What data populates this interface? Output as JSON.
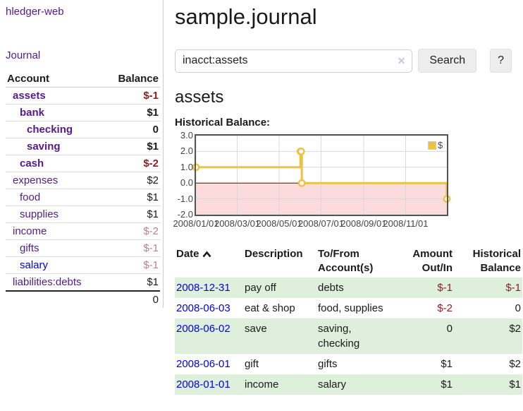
{
  "app": {
    "title": "hledger-web"
  },
  "colors": {
    "link_purple": "#551a8b",
    "link_blue": "#0000e6",
    "negative_strong": "#8f1d1d",
    "negative_soft": "#c28083",
    "row_shade_green": "#def0dc",
    "chart_gold": "#edc240",
    "chart_negative_region": "#fbdbdb",
    "chart_zero_line": "#800000",
    "chart_border": "#545454"
  },
  "sidebar": {
    "journal_link": "Journal",
    "accounts": {
      "account_header": "Account",
      "balance_header": "Balance",
      "rows": [
        {
          "account": "assets",
          "balance": "$-1",
          "indent": 1,
          "bold": true,
          "link_color": "purple",
          "balance_color": "neg-strong"
        },
        {
          "account": "bank",
          "balance": "$1",
          "indent": 2,
          "bold": true,
          "link_color": "purple",
          "balance_color": ""
        },
        {
          "account": "checking",
          "balance": "0",
          "indent": 3,
          "bold": true,
          "link_color": "purple",
          "balance_color": ""
        },
        {
          "account": "saving",
          "balance": "$1",
          "indent": 3,
          "bold": true,
          "link_color": "purple",
          "balance_color": ""
        },
        {
          "account": "cash",
          "balance": "$-2",
          "indent": 2,
          "bold": true,
          "link_color": "purple",
          "balance_color": "neg-strong"
        },
        {
          "account": "expenses",
          "balance": "$2",
          "indent": 1,
          "bold": false,
          "link_color": "purple",
          "balance_color": ""
        },
        {
          "account": "food",
          "balance": "$1",
          "indent": 2,
          "bold": false,
          "link_color": "purple",
          "balance_color": ""
        },
        {
          "account": "supplies",
          "balance": "$1",
          "indent": 2,
          "bold": false,
          "link_color": "purple",
          "balance_color": ""
        },
        {
          "account": "income",
          "balance": "$-2",
          "indent": 1,
          "bold": false,
          "link_color": "purple",
          "balance_color": "neg-soft"
        },
        {
          "account": "gifts",
          "balance": "$-1",
          "indent": 2,
          "bold": false,
          "link_color": "purple",
          "balance_color": "neg-soft"
        },
        {
          "account": "salary",
          "balance": "$-1",
          "indent": 2,
          "bold": false,
          "link_color": "blue",
          "balance_color": "neg-soft"
        },
        {
          "account": "liabilities:debts",
          "balance": "$1",
          "indent": 1,
          "bold": false,
          "link_color": "purple",
          "balance_color": ""
        }
      ],
      "total": "0"
    }
  },
  "main": {
    "title": "sample.journal",
    "search": {
      "value": "inacct:assets",
      "clear_icon": "✕",
      "button_label": "Search",
      "help_label": "?"
    },
    "account_heading": "assets"
  },
  "chart_data": {
    "type": "line",
    "step": true,
    "title": "Historical Balance:",
    "series": [
      {
        "name": "$",
        "color": "#edc240",
        "points": [
          [
            "2008-01-01",
            1
          ],
          [
            "2008-06-01",
            2
          ],
          [
            "2008-06-02",
            2
          ],
          [
            "2008-06-03",
            0
          ],
          [
            "2008-12-31",
            -1
          ]
        ]
      }
    ],
    "x_ticks": [
      "2008/01/01",
      "2008/03/01",
      "2008/05/01",
      "2008/07/01",
      "2008/09/01",
      "2008/11/01"
    ],
    "y_ticks": [
      3.0,
      2.0,
      1.0,
      0.0,
      -1.0,
      -2.0
    ],
    "xlim": [
      "2008-01-01",
      "2008-12-31"
    ],
    "ylim": [
      -2,
      3
    ],
    "grid": true,
    "legend": {
      "label": "$",
      "position": "top-right"
    },
    "negative_region_color": "#fbdbdb",
    "zero_line_color": "#800000"
  },
  "register": {
    "headers": {
      "date": "Date",
      "sort": {
        "column": "date",
        "direction": "asc"
      },
      "description": "Description",
      "accounts": [
        "To/From",
        "Account(s)"
      ],
      "amount": [
        "Amount",
        "Out/In"
      ],
      "balance": [
        "Historical",
        "Balance"
      ]
    },
    "rows": [
      {
        "date": "2008-12-31",
        "description": "pay off",
        "accounts": "debts",
        "amount": "$-1",
        "balance": "$-1",
        "amount_negative": true,
        "balance_negative": true,
        "shaded": true
      },
      {
        "date": "2008-06-03",
        "description": "eat & shop",
        "accounts": "food, supplies",
        "amount": "$-2",
        "balance": "0",
        "amount_negative": true,
        "balance_negative": false,
        "shaded": false
      },
      {
        "date": "2008-06-02",
        "description": "save",
        "accounts": "saving, checking",
        "amount": "0",
        "balance": "$2",
        "amount_negative": false,
        "balance_negative": false,
        "shaded": true
      },
      {
        "date": "2008-06-01",
        "description": "gift",
        "accounts": "gifts",
        "amount": "$1",
        "balance": "$2",
        "amount_negative": false,
        "balance_negative": false,
        "shaded": false
      },
      {
        "date": "2008-01-01",
        "description": "income",
        "accounts": "salary",
        "amount": "$1",
        "balance": "$1",
        "amount_negative": false,
        "balance_negative": false,
        "shaded": true
      }
    ]
  }
}
